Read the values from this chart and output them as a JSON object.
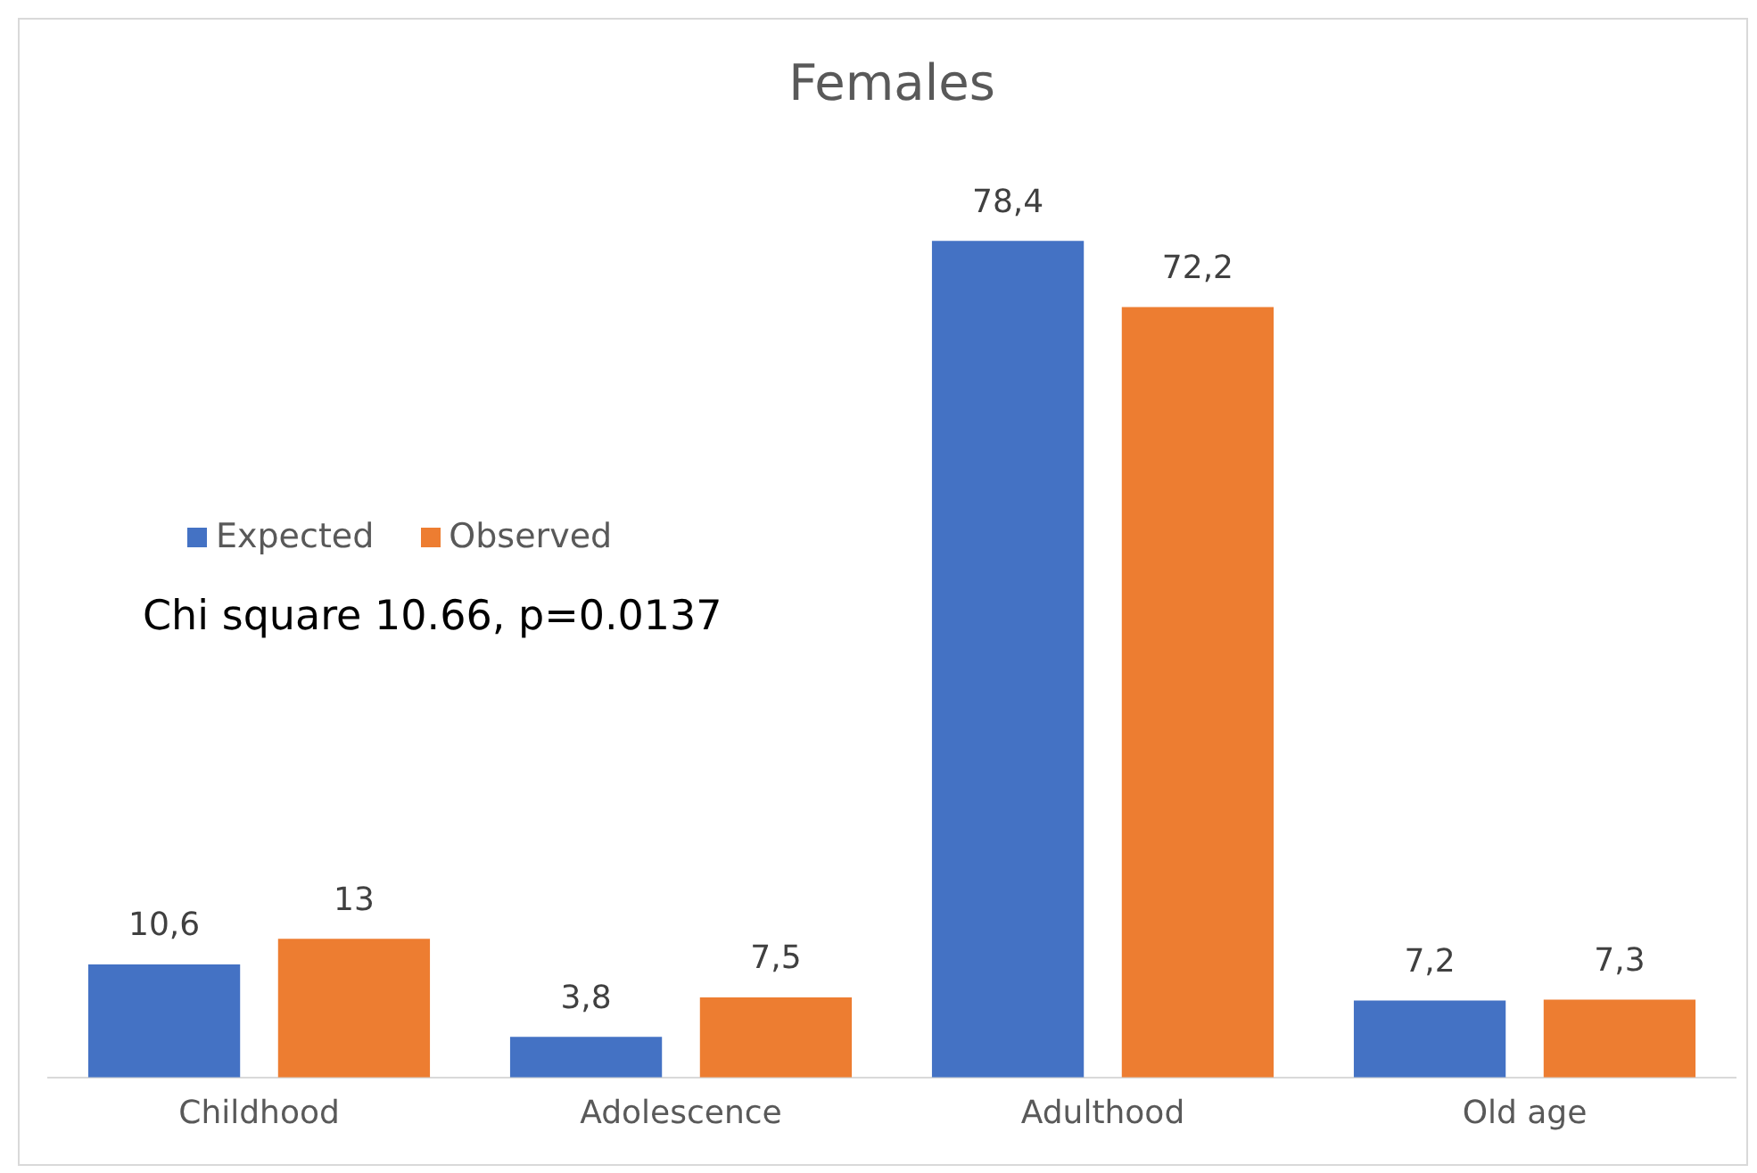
{
  "chart_data": {
    "type": "bar",
    "title": "Females",
    "categories": [
      "Childhood",
      "Adolescence",
      "Adulthood",
      "Old age"
    ],
    "tick_labels": "x",
    "series": [
      {
        "name": "Expected",
        "color": "#4472c4",
        "values": [
          10.6,
          3.8,
          78.4,
          7.2
        ],
        "value_labels": [
          "10,6",
          "3,8",
          "78,4",
          "7,2"
        ]
      },
      {
        "name": "Observed",
        "color": "#ed7d31",
        "values": [
          13,
          7.5,
          72.2,
          7.3
        ],
        "value_labels": [
          "13",
          "7,5",
          "72,2",
          "7,3"
        ]
      }
    ],
    "legend": "left",
    "annotations": [
      "Chi square 10.66, p=0.0137"
    ]
  }
}
